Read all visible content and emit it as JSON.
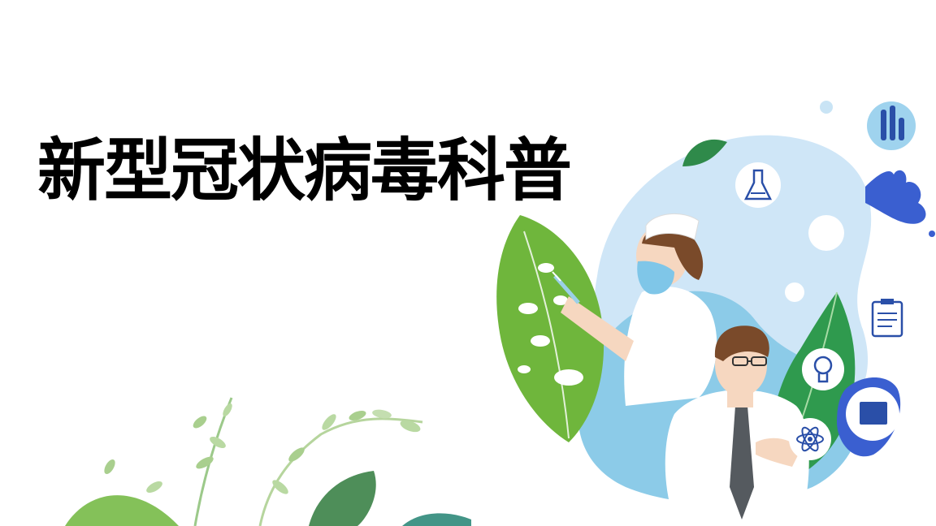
{
  "slide": {
    "title": "新型冠状病毒科普"
  },
  "illustration": {
    "icons": [
      "flask-icon",
      "test-tubes-icon",
      "clipboard-icon",
      "lightbulb-icon",
      "atom-icon",
      "monitor-icon"
    ],
    "figures": [
      "nurse",
      "doctor"
    ]
  },
  "colors": {
    "text": "#000000",
    "blob_light": "#cfe6f7",
    "blob_mid": "#8ccbe8",
    "leaf_green": "#6fb63c",
    "leaf_dark": "#2f8a4a",
    "icon_blue": "#2a4fa8",
    "splash_blue": "#3a5fd0"
  }
}
